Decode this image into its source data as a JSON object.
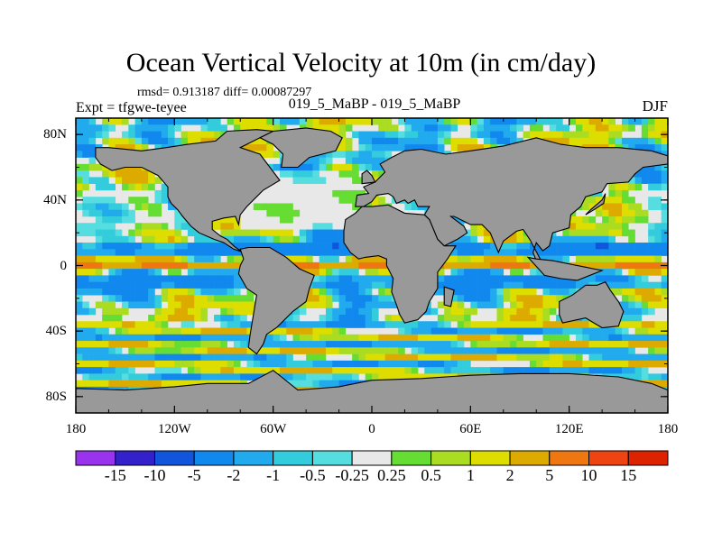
{
  "title": "Ocean Vertical Velocity at 10m (in cm/day)",
  "stats": "rmsd= 0.913187 diff= 0.00087297",
  "experiment": "Expt = tfgwe-teyee",
  "comparison": "019_5_MaBP - 019_5_MaBP",
  "season": "DJF",
  "chart_data": {
    "type": "heatmap",
    "title": "Ocean Vertical Velocity at 10m (in cm/day)",
    "x_axis": {
      "range": [
        -180,
        180
      ],
      "tick_values": [
        -180,
        -120,
        -60,
        0,
        60,
        120,
        180
      ],
      "tick_labels": [
        "180",
        "120W",
        "60W",
        "0",
        "60E",
        "120E",
        "180"
      ]
    },
    "y_axis": {
      "range": [
        -90,
        90
      ],
      "tick_values": [
        80,
        40,
        0,
        -40,
        -80
      ],
      "tick_labels": [
        "80N",
        "40N",
        "0",
        "40S",
        "80S"
      ]
    },
    "colorbar": {
      "levels": [
        "-15",
        "-10",
        "-5",
        "-2",
        "-1",
        "-0.5",
        "-0.25",
        "0.25",
        "0.5",
        "1",
        "2",
        "5",
        "10",
        "15"
      ],
      "colors": [
        "#9933ee",
        "#3322cc",
        "#1155dd",
        "#1188ee",
        "#22aaee",
        "#33ccdd",
        "#55dde0",
        "#e8e8e8",
        "#66dd33",
        "#aadd22",
        "#dddd00",
        "#ddaa00",
        "#ee7711",
        "#ee4411",
        "#dd2200"
      ]
    },
    "land_color": "#999999",
    "features": [
      "Equatorial Pacific upwelling band (positive 1-10 cm/day) along 0",
      "Downwelling bands (negative -1 to -5) flanking the equator near 10N and 10S",
      "Weak values (near zero) over much of the North Atlantic and subtropical gyres",
      "Mixed positive/negative banding in the Southern Ocean between 40S and 70S"
    ]
  }
}
